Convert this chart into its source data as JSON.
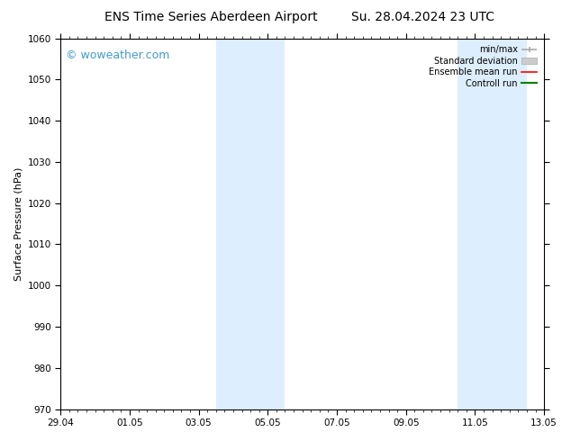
{
  "title_left": "ENS Time Series Aberdeen Airport",
  "title_right": "Su. 28.04.2024 23 UTC",
  "ylabel": "Surface Pressure (hPa)",
  "ylim": [
    970,
    1060
  ],
  "yticks": [
    970,
    980,
    990,
    1000,
    1010,
    1020,
    1030,
    1040,
    1050,
    1060
  ],
  "xtick_labels": [
    "29.04",
    "01.05",
    "03.05",
    "05.05",
    "07.05",
    "09.05",
    "11.05",
    "13.05"
  ],
  "xtick_positions": [
    0,
    2,
    4,
    6,
    8,
    10,
    12,
    14
  ],
  "xlim": [
    0,
    14
  ],
  "shaded_bands": [
    {
      "start": 4.5,
      "end": 6.5
    },
    {
      "start": 11.5,
      "end": 13.5
    }
  ],
  "shaded_color": "#ddeeff",
  "legend_entries": [
    {
      "label": "min/max",
      "color": "#aaaaaa",
      "type": "errorbar"
    },
    {
      "label": "Standard deviation",
      "color": "#cccccc",
      "type": "fill"
    },
    {
      "label": "Ensemble mean run",
      "color": "red",
      "type": "line"
    },
    {
      "label": "Controll run",
      "color": "green",
      "type": "line"
    }
  ],
  "watermark_text": "© woweather.com",
  "watermark_color": "#4499cc",
  "bg_color": "#ffffff",
  "title_fontsize": 10,
  "axis_label_fontsize": 8,
  "tick_fontsize": 7.5,
  "legend_fontsize": 7,
  "watermark_fontsize": 9
}
